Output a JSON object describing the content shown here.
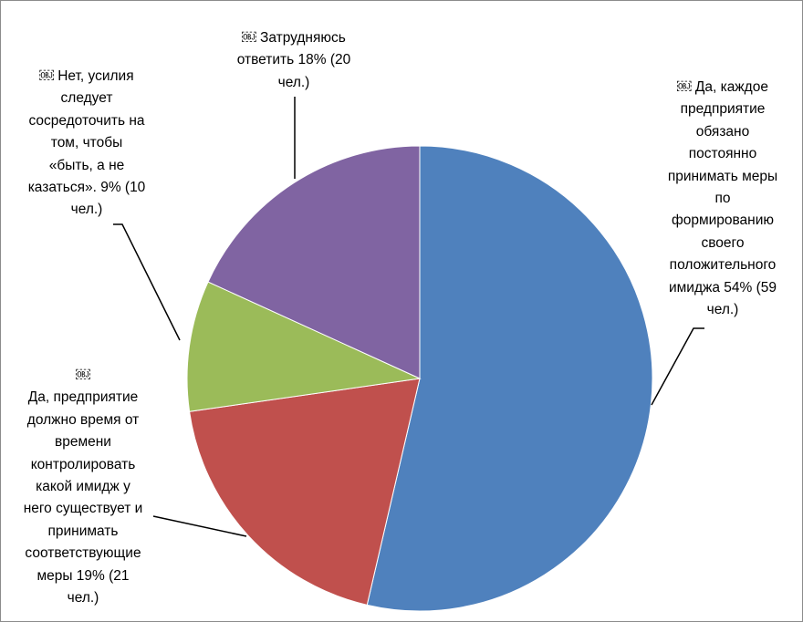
{
  "chart_data": {
    "type": "pie",
    "title": "",
    "slices": [
      {
        "label": "Да, каждое предприятие обязано постоянно принимать меры по формированию своего положительного имиджа 54% (59 чел.)",
        "value": 54,
        "count": 59,
        "color": "#4f81bd"
      },
      {
        "label": "Да, предприятие должно время от времени контролировать какой имидж у него существует и принимать соответствующие меры 19% (21 чел.)",
        "value": 19,
        "count": 21,
        "color": "#c0504d"
      },
      {
        "label": "Нет, усилия следует сосредоточить на том, чтобы «быть, а не казаться». 9% (10 чел.)",
        "value": 9,
        "count": 10,
        "color": "#9bbb59"
      },
      {
        "label": "Затрудняюсь ответить 18% (20 чел.)",
        "value": 18,
        "count": 20,
        "color": "#8064a2"
      }
    ]
  },
  "labels": {
    "slice0": "￼ Да, каждое\nпредприятие\nобязано\nпостоянно\nпринимать меры\nпо\nформированию\nсвоего\nположительного\nимиджа 54% (59\nчел.)",
    "slice1": "￼\nДа, предприятие\nдолжно время от\nвремени\nконтролировать\nкакой имидж у\nнего существует и\nпринимать\nсоответствующие\nмеры 19% (21\nчел.)",
    "slice2": "￼ Нет, усилия\nследует\nсосредоточить на\nтом, чтобы\n«быть, а не\nказаться». 9% (10\nчел.)",
    "slice3": "￼ Затрудняюсь\nответить 18% (20\nчел.)"
  }
}
